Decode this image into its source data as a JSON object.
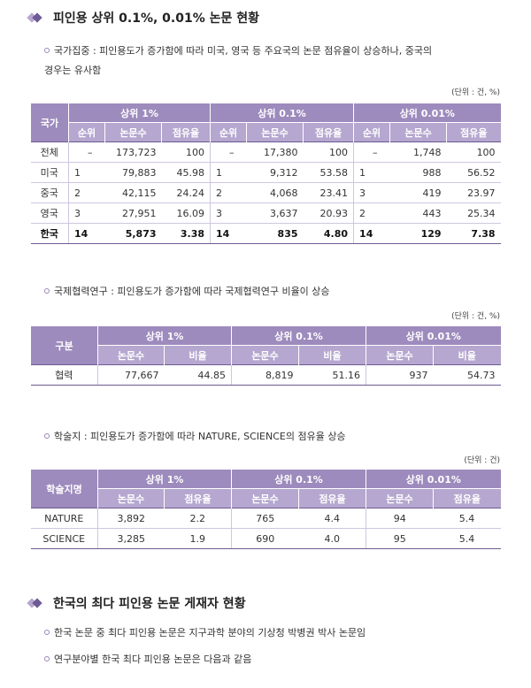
{
  "section1": {
    "title": "피인용 상위 0.1%, 0.01% 논문 현황"
  },
  "b1": {
    "line1": "국가집중 : 피인용도가 증가함에 따라 미국, 영국 등 주요국의 논문 점유율이 상승하나, 중국의",
    "line2": "경우는 유사함"
  },
  "unit1": "(단위 : 건, %)",
  "t1": {
    "rowhead": "국가",
    "groups": [
      "상위 1%",
      "상위 0.1%",
      "상위 0.01%"
    ],
    "sub": [
      "순위",
      "논문수",
      "점유율"
    ],
    "rows": [
      {
        "c": "전체",
        "v": [
          "–",
          "173,723",
          "100",
          "–",
          "17,380",
          "100",
          "–",
          "1,748",
          "100"
        ]
      },
      {
        "c": "미국",
        "v": [
          "1",
          "79,883",
          "45.98",
          "1",
          "9,312",
          "53.58",
          "1",
          "988",
          "56.52"
        ]
      },
      {
        "c": "중국",
        "v": [
          "2",
          "42,115",
          "24.24",
          "2",
          "4,068",
          "23.41",
          "3",
          "419",
          "23.97"
        ]
      },
      {
        "c": "영국",
        "v": [
          "3",
          "27,951",
          "16.09",
          "3",
          "3,637",
          "20.93",
          "2",
          "443",
          "25.34"
        ]
      },
      {
        "c": "한국",
        "v": [
          "14",
          "5,873",
          "3.38",
          "14",
          "835",
          "4.80",
          "14",
          "129",
          "7.38"
        ]
      }
    ]
  },
  "b2": "국제협력연구 : 피인용도가 증가함에 따라 국제협력연구 비율이 상승",
  "unit2": "(단위 : 건, %)",
  "t2": {
    "rowhead": "구분",
    "groups": [
      "상위 1%",
      "상위 0.1%",
      "상위 0.01%"
    ],
    "sub": [
      "논문수",
      "비율"
    ],
    "rows": [
      {
        "c": "협력",
        "v": [
          "77,667",
          "44.85",
          "8,819",
          "51.16",
          "937",
          "54.73"
        ]
      }
    ]
  },
  "b3": "학술지 : 피인용도가 증가함에 따라 NATURE, SCIENCE의 점유율 상승",
  "unit3": "(단위 : 건)",
  "t3": {
    "rowhead": "학술지명",
    "groups": [
      "상위 1%",
      "상위 0.1%",
      "상위 0.01%"
    ],
    "sub": [
      "논문수",
      "점유율"
    ],
    "rows": [
      {
        "c": "NATURE",
        "v": [
          "3,892",
          "2.2",
          "765",
          "4.4",
          "94",
          "5.4"
        ]
      },
      {
        "c": "SCIENCE",
        "v": [
          "3,285",
          "1.9",
          "690",
          "4.0",
          "95",
          "5.4"
        ]
      }
    ]
  },
  "section2": {
    "title": "한국의 최다 피인용 논문 게재자 현황"
  },
  "b4": "한국 논문 중 최다 피인용 논문은 지구과학 분야의 기상청 박병권 박사 논문임",
  "b5": "연구분야별 한국 최다 피인용 논문은 다음과 같음"
}
